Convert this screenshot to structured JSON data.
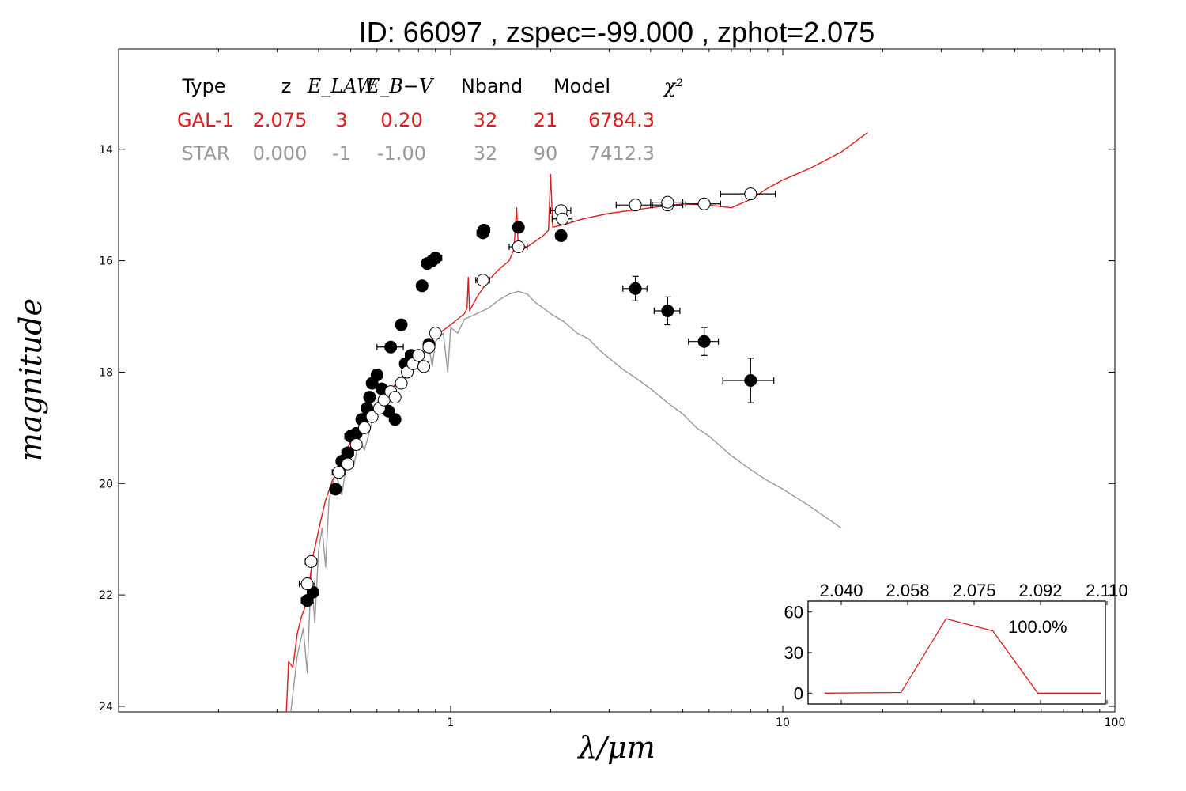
{
  "chart_data": [
    {
      "type": "line",
      "title": "ID:  66097 , zspec=-99.000 , zphot=2.075",
      "xlabel": "λ/μm",
      "ylabel": "magnitude",
      "xscale": "log",
      "xlim": [
        0.1,
        100
      ],
      "ylim": [
        24.1,
        12.2
      ],
      "y_inverted": true,
      "x_ticks": [
        "1",
        "10",
        "100"
      ],
      "y_ticks": [
        "14",
        "16",
        "18",
        "20",
        "22",
        "24"
      ],
      "colors": {
        "galaxy": "#e31a1c",
        "star": "#999999",
        "points": "#000000"
      },
      "fit_table": {
        "headers": [
          "Type",
          "z",
          "E_LAW",
          "E_B−V",
          "Nband",
          "Model",
          "χ²"
        ],
        "rows": [
          {
            "name": "GAL-1",
            "color": "#e31a1c",
            "values": [
              "GAL-1",
              "2.075",
              "3",
              "0.20",
              "32",
              "21",
              "6784.3"
            ]
          },
          {
            "name": "STAR",
            "color": "#999999",
            "values": [
              "STAR",
              "0.000",
              "-1",
              "-1.00",
              "32",
              "90",
              "7412.3"
            ]
          }
        ]
      },
      "series": [
        {
          "name": "GAL-1",
          "color": "#e31a1c",
          "points": [
            [
              0.32,
              24.1
            ],
            [
              0.325,
              23.2
            ],
            [
              0.335,
              23.3
            ],
            [
              0.345,
              22.7
            ],
            [
              0.355,
              22.4
            ],
            [
              0.365,
              22.2
            ],
            [
              0.375,
              21.8
            ],
            [
              0.385,
              21.3
            ],
            [
              0.395,
              21.0
            ],
            [
              0.405,
              20.7
            ],
            [
              0.42,
              20.3
            ],
            [
              0.44,
              19.95
            ],
            [
              0.46,
              19.7
            ],
            [
              0.48,
              19.45
            ],
            [
              0.5,
              19.25
            ],
            [
              0.53,
              19.0
            ],
            [
              0.56,
              18.8
            ],
            [
              0.6,
              18.55
            ],
            [
              0.65,
              18.35
            ],
            [
              0.7,
              18.15
            ],
            [
              0.75,
              17.95
            ],
            [
              0.8,
              17.75
            ],
            [
              0.85,
              17.55
            ],
            [
              0.9,
              17.35
            ],
            [
              0.95,
              17.25
            ],
            [
              1.0,
              17.15
            ],
            [
              1.05,
              17.05
            ],
            [
              1.1,
              16.95
            ],
            [
              1.12,
              16.85
            ],
            [
              1.13,
              16.3
            ],
            [
              1.14,
              16.9
            ],
            [
              1.2,
              16.65
            ],
            [
              1.3,
              16.35
            ],
            [
              1.4,
              16.15
            ],
            [
              1.5,
              16.0
            ],
            [
              1.55,
              15.8
            ],
            [
              1.58,
              15.05
            ],
            [
              1.6,
              15.85
            ],
            [
              1.7,
              15.75
            ],
            [
              1.8,
              15.65
            ],
            [
              1.9,
              15.55
            ],
            [
              1.97,
              15.45
            ],
            [
              2.0,
              14.45
            ],
            [
              2.03,
              15.4
            ],
            [
              2.2,
              15.35
            ],
            [
              2.5,
              15.25
            ],
            [
              3.0,
              15.15
            ],
            [
              4.0,
              15.05
            ],
            [
              5.0,
              14.98
            ],
            [
              6.0,
              15.0
            ],
            [
              7.0,
              15.05
            ],
            [
              8.0,
              14.9
            ],
            [
              9.0,
              14.7
            ],
            [
              10.0,
              14.55
            ],
            [
              12.0,
              14.35
            ],
            [
              15.0,
              14.05
            ],
            [
              18.0,
              13.7
            ]
          ]
        },
        {
          "name": "STAR",
          "color": "#999999",
          "points": [
            [
              0.33,
              24.1
            ],
            [
              0.345,
              23.1
            ],
            [
              0.36,
              22.6
            ],
            [
              0.37,
              23.4
            ],
            [
              0.38,
              21.6
            ],
            [
              0.39,
              22.5
            ],
            [
              0.4,
              21.2
            ],
            [
              0.41,
              20.8
            ],
            [
              0.42,
              21.5
            ],
            [
              0.43,
              20.3
            ],
            [
              0.45,
              19.8
            ],
            [
              0.47,
              20.2
            ],
            [
              0.49,
              19.5
            ],
            [
              0.51,
              19.7
            ],
            [
              0.53,
              19.2
            ],
            [
              0.55,
              19.4
            ],
            [
              0.58,
              18.9
            ],
            [
              0.62,
              18.6
            ],
            [
              0.66,
              18.4
            ],
            [
              0.7,
              18.15
            ],
            [
              0.74,
              18.0
            ],
            [
              0.78,
              17.8
            ],
            [
              0.82,
              17.7
            ],
            [
              0.86,
              17.55
            ],
            [
              0.88,
              17.9
            ],
            [
              0.9,
              17.45
            ],
            [
              0.95,
              17.3
            ],
            [
              0.98,
              18.0
            ],
            [
              1.0,
              17.2
            ],
            [
              1.05,
              17.3
            ],
            [
              1.1,
              17.05
            ],
            [
              1.2,
              16.95
            ],
            [
              1.3,
              16.85
            ],
            [
              1.4,
              16.7
            ],
            [
              1.5,
              16.6
            ],
            [
              1.6,
              16.55
            ],
            [
              1.7,
              16.6
            ],
            [
              1.8,
              16.75
            ],
            [
              1.9,
              16.85
            ],
            [
              2.0,
              16.95
            ],
            [
              2.2,
              17.1
            ],
            [
              2.4,
              17.3
            ],
            [
              2.6,
              17.4
            ],
            [
              2.8,
              17.6
            ],
            [
              3.0,
              17.75
            ],
            [
              3.3,
              17.95
            ],
            [
              3.6,
              18.1
            ],
            [
              4.0,
              18.3
            ],
            [
              4.5,
              18.55
            ],
            [
              5.0,
              18.75
            ],
            [
              5.5,
              19.0
            ],
            [
              6.0,
              19.15
            ],
            [
              7.0,
              19.5
            ],
            [
              8.0,
              19.75
            ],
            [
              9.0,
              19.95
            ],
            [
              10.0,
              20.1
            ],
            [
              12.0,
              20.4
            ],
            [
              15.0,
              20.8
            ]
          ]
        },
        {
          "name": "observed (filled)",
          "color": "#000000",
          "marker": "filled",
          "points": [
            [
              0.37,
              22.1,
              0.015,
              0
            ],
            [
              0.385,
              21.95,
              0.015,
              0
            ],
            [
              0.45,
              20.1,
              0.01,
              0
            ],
            [
              0.47,
              19.6,
              0.015,
              0
            ],
            [
              0.49,
              19.45,
              0.02,
              0
            ],
            [
              0.5,
              19.15,
              0.02,
              0
            ],
            [
              0.52,
              19.1,
              0.015,
              0
            ],
            [
              0.54,
              18.85,
              0.02,
              0
            ],
            [
              0.56,
              18.65,
              0.02,
              0
            ],
            [
              0.57,
              18.45,
              0.02,
              0
            ],
            [
              0.58,
              18.2,
              0.02,
              0
            ],
            [
              0.6,
              18.05,
              0.02,
              0
            ],
            [
              0.62,
              18.3,
              0.02,
              0
            ],
            [
              0.64,
              18.4,
              0.02,
              0
            ],
            [
              0.65,
              18.7,
              0.02,
              0
            ],
            [
              0.66,
              17.55,
              0.06,
              0
            ],
            [
              0.68,
              18.85,
              0.02,
              0
            ],
            [
              0.71,
              17.15,
              0.02,
              0
            ],
            [
              0.73,
              17.85,
              0.02,
              0
            ],
            [
              0.76,
              17.7,
              0.03,
              0
            ],
            [
              0.79,
              17.8,
              0.03,
              0
            ],
            [
              0.82,
              16.45,
              0.02,
              0
            ],
            [
              0.85,
              16.05,
              0.03,
              0
            ],
            [
              0.86,
              17.5,
              0.03,
              0
            ],
            [
              0.88,
              16.0,
              0.04,
              0
            ],
            [
              0.9,
              15.95,
              0.04,
              0
            ],
            [
              1.25,
              15.5,
              0.05,
              0
            ],
            [
              1.26,
              15.45,
              0.05,
              0
            ],
            [
              1.6,
              15.4,
              0.05,
              0
            ],
            [
              2.15,
              15.55,
              0.08,
              0
            ],
            [
              3.6,
              16.5,
              0.3,
              0.22
            ],
            [
              4.5,
              16.9,
              0.4,
              0.25
            ],
            [
              5.8,
              17.45,
              0.6,
              0.25
            ],
            [
              8.0,
              18.15,
              1.4,
              0.4
            ]
          ]
        },
        {
          "name": "observed (open)",
          "color": "#000000",
          "marker": "open",
          "points": [
            [
              0.37,
              21.8,
              0.02,
              0
            ],
            [
              0.38,
              21.4,
              0.015,
              0
            ],
            [
              0.46,
              19.8,
              0.02,
              0
            ],
            [
              0.49,
              19.65,
              0.02,
              0
            ],
            [
              0.52,
              19.3,
              0.02,
              0
            ],
            [
              0.55,
              19.0,
              0.02,
              0
            ],
            [
              0.58,
              18.8,
              0.02,
              0
            ],
            [
              0.61,
              18.65,
              0.02,
              0
            ],
            [
              0.63,
              18.5,
              0.02,
              0
            ],
            [
              0.66,
              18.35,
              0.02,
              0
            ],
            [
              0.68,
              18.45,
              0.02,
              0
            ],
            [
              0.71,
              18.2,
              0.02,
              0
            ],
            [
              0.74,
              18.0,
              0.02,
              0
            ],
            [
              0.77,
              17.85,
              0.02,
              0
            ],
            [
              0.8,
              17.7,
              0.03,
              0
            ],
            [
              0.83,
              17.9,
              0.03,
              0
            ],
            [
              0.86,
              17.55,
              0.03,
              0
            ],
            [
              0.9,
              17.3,
              0.03,
              0
            ],
            [
              1.25,
              16.35,
              0.06,
              0
            ],
            [
              1.6,
              15.75,
              0.1,
              0
            ],
            [
              2.15,
              15.1,
              0.15,
              0
            ],
            [
              2.17,
              15.25,
              0.15,
              0
            ],
            [
              3.6,
              15.0,
              0.45,
              0
            ],
            [
              4.5,
              15.0,
              0.5,
              0
            ],
            [
              4.5,
              14.95,
              0.5,
              0
            ],
            [
              5.8,
              14.98,
              0.7,
              0
            ],
            [
              8.0,
              14.8,
              1.5,
              0
            ]
          ]
        }
      ]
    },
    {
      "type": "line",
      "x_ticks": [
        "2.040",
        "2.058",
        "2.075",
        "2.092",
        "2.110"
      ],
      "y_ticks": [
        "0",
        "30",
        "60"
      ],
      "xlim": [
        2.04,
        2.11
      ],
      "ylim": [
        -8,
        68
      ],
      "annotation": "100.0%",
      "series": [
        {
          "color": "#e31a1c",
          "x": [
            2.0439,
            2.0619,
            2.0725,
            2.0835,
            2.0941,
            2.1089
          ],
          "y": [
            0,
            0.5,
            55,
            46,
            0,
            0
          ]
        }
      ]
    }
  ]
}
